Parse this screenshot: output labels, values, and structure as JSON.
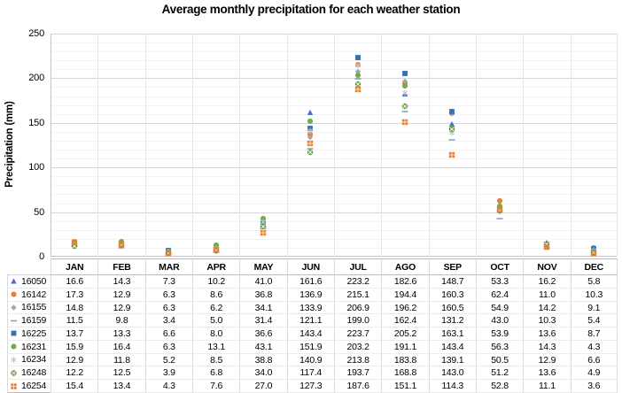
{
  "chart_data": {
    "type": "scatter",
    "title": "Average monthly precipitation for each weather station",
    "ylabel": "Precipitation (mm)",
    "xlabel": "",
    "ylim": [
      0,
      250
    ],
    "y_ticks": [
      0,
      50,
      100,
      150,
      200,
      250
    ],
    "y_minor_step": 10,
    "grid": true,
    "legend_position": "table-left",
    "categories": [
      "JAN",
      "FEB",
      "MAR",
      "APR",
      "MAY",
      "JUN",
      "JUL",
      "AGO",
      "SEP",
      "OCT",
      "NOV",
      "DEC"
    ],
    "series": [
      {
        "name": "16050",
        "marker": "triangle",
        "color": "#4472C4",
        "values": [
          16.6,
          14.3,
          7.3,
          10.2,
          41.0,
          161.6,
          223.2,
          182.6,
          148.7,
          53.3,
          16.2,
          5.8
        ]
      },
      {
        "name": "16142",
        "marker": "circle",
        "color": "#ED7D31",
        "values": [
          17.3,
          12.9,
          6.3,
          8.6,
          36.8,
          136.9,
          215.1,
          194.4,
          160.3,
          62.4,
          11.0,
          10.3
        ]
      },
      {
        "name": "16155",
        "marker": "diamond",
        "color": "#A5A5A5",
        "values": [
          14.8,
          12.9,
          6.3,
          6.2,
          34.1,
          133.9,
          206.9,
          196.2,
          160.5,
          54.9,
          14.2,
          9.1
        ]
      },
      {
        "name": "16159",
        "marker": "dash",
        "color": "#7E9FC9",
        "values": [
          11.5,
          9.8,
          3.4,
          5.0,
          31.4,
          121.1,
          199.0,
          162.4,
          131.2,
          43.0,
          10.3,
          5.4
        ]
      },
      {
        "name": "16225",
        "marker": "square",
        "color": "#2E75B6",
        "values": [
          13.7,
          13.3,
          6.6,
          8.0,
          36.6,
          143.4,
          223.7,
          205.2,
          163.1,
          53.9,
          13.6,
          8.7
        ]
      },
      {
        "name": "16231",
        "marker": "circle",
        "color": "#70AD47",
        "values": [
          15.9,
          16.4,
          6.3,
          13.1,
          43.1,
          151.9,
          203.2,
          191.1,
          143.4,
          56.3,
          14.3,
          4.3
        ]
      },
      {
        "name": "16234",
        "marker": "asterisk",
        "color": "#C6C6C6",
        "values": [
          12.9,
          11.8,
          5.2,
          8.5,
          38.8,
          140.9,
          213.8,
          183.8,
          139.1,
          50.5,
          12.9,
          6.6
        ]
      },
      {
        "name": "16248",
        "marker": "circle-x",
        "color": "#5E9E3E",
        "values": [
          12.2,
          12.5,
          3.9,
          6.8,
          34.0,
          117.4,
          193.7,
          168.8,
          143.0,
          51.2,
          13.6,
          4.9
        ]
      },
      {
        "name": "16254",
        "marker": "grid4",
        "color": "#ED7D31",
        "values": [
          15.4,
          13.4,
          4.3,
          7.6,
          27.0,
          127.3,
          187.6,
          151.1,
          114.3,
          52.8,
          11.1,
          3.6
        ]
      }
    ],
    "value_decimals": 1,
    "colors": {
      "major_gridline": "#d6d6d6",
      "minor_gridline": "#f3f3f3",
      "vertical_gridline": "#e7e7e7",
      "axis_line": "#c3c3c3",
      "table_border": "#bdbdbd"
    }
  }
}
